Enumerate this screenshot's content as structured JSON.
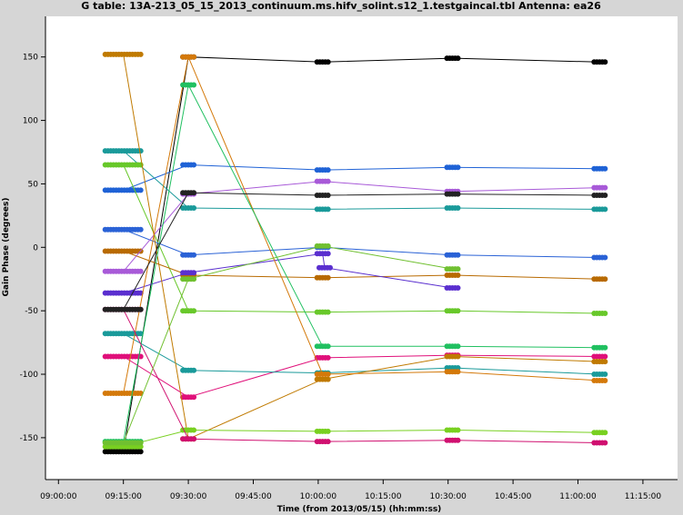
{
  "chart_data": {
    "type": "scatter",
    "title": "G table: 13A-213_05_15_2013_continuum.ms.hifv_solint.s12_1.testgaincal.tbl   Antenna: ea26",
    "xlabel": "Time (from 2013/05/15) (hh:mm:ss)",
    "ylabel": "Gain Phase (degrees)",
    "x_ticks": [
      "09:00:00",
      "09:15:00",
      "09:30:00",
      "09:45:00",
      "10:00:00",
      "10:15:00",
      "10:30:00",
      "10:45:00",
      "11:00:00",
      "11:15:00"
    ],
    "y_ticks": [
      150,
      100,
      50,
      0,
      -50,
      -100,
      -150
    ],
    "xlim": [
      "08:57:00",
      "11:23:00"
    ],
    "ylim": [
      -183,
      182
    ],
    "grid": false,
    "line_style": "points connected by thin lines",
    "series": [
      {
        "color": "#000000",
        "points": [
          [
            "09:15:00",
            -161
          ],
          [
            "09:30:00",
            150
          ],
          [
            "10:01:00",
            146
          ],
          [
            "10:31:00",
            149
          ],
          [
            "11:05:00",
            146
          ]
        ]
      },
      {
        "color": "#1f62d6",
        "points": [
          [
            "09:15:00",
            45
          ],
          [
            "09:30:00",
            65
          ],
          [
            "10:01:00",
            61
          ],
          [
            "10:31:00",
            63
          ],
          [
            "11:05:00",
            62
          ]
        ]
      },
      {
        "color": "#1a9a9a",
        "points": [
          [
            "09:15:00",
            76
          ],
          [
            "09:30:00",
            31
          ],
          [
            "10:01:00",
            30
          ],
          [
            "10:31:00",
            31
          ],
          [
            "11:05:00",
            30
          ]
        ]
      },
      {
        "color": "#68c82a",
        "points": [
          [
            "09:15:00",
            65
          ],
          [
            "09:30:00",
            -50
          ],
          [
            "10:01:00",
            -51
          ],
          [
            "10:31:00",
            -50
          ],
          [
            "11:05:00",
            -52
          ]
        ]
      },
      {
        "color": "#2a62d6",
        "points": [
          [
            "09:15:00",
            14
          ],
          [
            "09:30:00",
            -6
          ],
          [
            "10:01:00",
            0
          ],
          [
            "10:31:00",
            -6
          ],
          [
            "11:05:00",
            -8
          ]
        ]
      },
      {
        "color": "#b86a00",
        "points": [
          [
            "09:15:00",
            -3
          ],
          [
            "09:30:00",
            -22
          ],
          [
            "10:01:00",
            -24
          ],
          [
            "10:31:00",
            -22
          ],
          [
            "11:05:00",
            -25
          ]
        ]
      },
      {
        "color": "#a85ad8",
        "points": [
          [
            "09:15:00",
            -19
          ],
          [
            "09:30:00",
            42
          ],
          [
            "10:01:00",
            52
          ],
          [
            "10:31:00",
            44
          ],
          [
            "11:05:00",
            47
          ]
        ]
      },
      {
        "color": "#5a2fcf",
        "points": [
          [
            "09:15:00",
            -36
          ],
          [
            "09:30:00",
            -20
          ],
          [
            "10:01:00",
            -5
          ],
          [
            "10:01:30",
            -16
          ],
          [
            "10:31:00",
            -32
          ]
        ]
      },
      {
        "color": "#e0107a",
        "points": [
          [
            "09:15:00",
            -86
          ],
          [
            "09:30:00",
            -118
          ],
          [
            "10:01:00",
            -87
          ],
          [
            "10:31:00",
            -85
          ],
          [
            "11:05:00",
            -86
          ]
        ]
      },
      {
        "color": "#1a9a9a",
        "points": [
          [
            "09:15:00",
            -68
          ],
          [
            "09:30:00",
            -97
          ],
          [
            "10:01:00",
            -99
          ],
          [
            "10:31:00",
            -95
          ],
          [
            "11:05:00",
            -100
          ]
        ]
      },
      {
        "color": "#c07a00",
        "points": [
          [
            "09:15:00",
            152
          ],
          [
            "09:30:00",
            -151
          ],
          [
            "10:01:00",
            -104
          ],
          [
            "10:31:00",
            -86
          ],
          [
            "11:05:00",
            -90
          ]
        ]
      },
      {
        "color": "#d4790a",
        "points": [
          [
            "09:15:00",
            -115
          ],
          [
            "09:30:00",
            150
          ],
          [
            "10:01:00",
            -100
          ],
          [
            "10:31:00",
            -98
          ],
          [
            "11:05:00",
            -105
          ]
        ]
      },
      {
        "color": "#20c060",
        "points": [
          [
            "09:15:00",
            -153
          ],
          [
            "09:30:00",
            128
          ],
          [
            "10:01:00",
            -78
          ],
          [
            "10:31:00",
            -78
          ],
          [
            "11:05:00",
            -79
          ]
        ]
      },
      {
        "color": "#78d020",
        "points": [
          [
            "09:15:00",
            -157
          ],
          [
            "09:30:00",
            -144
          ],
          [
            "10:01:00",
            -145
          ],
          [
            "10:31:00",
            -144
          ],
          [
            "11:05:00",
            -146
          ]
        ]
      },
      {
        "color": "#d01070",
        "points": [
          [
            "09:15:00",
            -49
          ],
          [
            "09:30:00",
            -151
          ],
          [
            "10:01:00",
            -153
          ],
          [
            "10:31:00",
            -152
          ],
          [
            "11:05:00",
            -154
          ]
        ]
      },
      {
        "color": "#222222",
        "points": [
          [
            "09:15:00",
            -49
          ],
          [
            "09:30:00",
            43
          ],
          [
            "10:01:00",
            41
          ],
          [
            "10:31:00",
            42
          ],
          [
            "11:05:00",
            41
          ]
        ]
      },
      {
        "color": "#70c030",
        "points": [
          [
            "09:15:00",
            -154
          ],
          [
            "09:30:00",
            -25
          ],
          [
            "10:01:00",
            1
          ],
          [
            "10:31:00",
            -17
          ]
        ]
      }
    ]
  }
}
